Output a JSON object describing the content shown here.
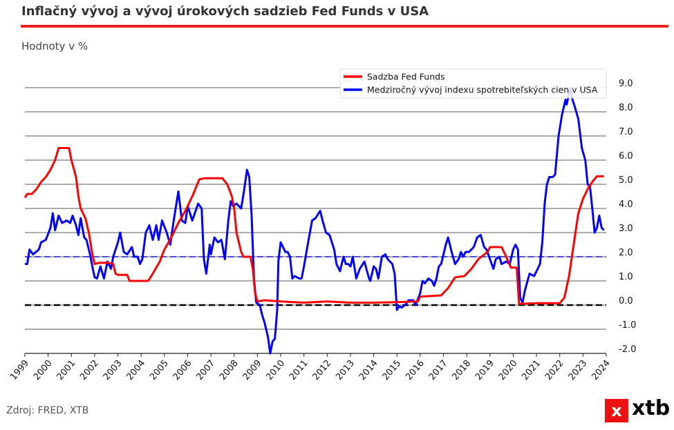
{
  "title": "Inflačný vývoj a vývoj úrokových sadzieb Fed Funds v USA",
  "subtitle": "Hodnoty v %",
  "source": "Zdroj: FRED, XTB",
  "logo": {
    "text": "xtb",
    "mark": "x",
    "color": "#ee1111"
  },
  "chart_data": {
    "type": "line",
    "title": "Inflačný vývoj a vývoj úrokových sadzieb Fed Funds v USA",
    "ylabel": "Hodnoty v %",
    "xlim": [
      1999,
      2024
    ],
    "ylim": [
      -2,
      9
    ],
    "grid": true,
    "legend_position": "top-right",
    "yaxis_side": "right",
    "x_ticks": [
      "1999",
      "2000",
      "2001",
      "2002",
      "2003",
      "2004",
      "2005",
      "2006",
      "2007",
      "2008",
      "2009",
      "2010",
      "2011",
      "2012",
      "2013",
      "2014",
      "2015",
      "2016",
      "2017",
      "2018",
      "2019",
      "2020",
      "2021",
      "2022",
      "2023",
      "2024"
    ],
    "y_ticks": [
      "9.0",
      "8.0",
      "7.0",
      "6.0",
      "5.0",
      "4.0",
      "3.0",
      "2.0",
      "1.0",
      "0.0",
      "-1.0",
      "-2.0"
    ],
    "reference_lines": [
      {
        "value": 2.0,
        "color": "#3333dd",
        "style": "dashed"
      },
      {
        "value": 0.0,
        "color": "#000000",
        "style": "dashed"
      }
    ],
    "series": [
      {
        "name": "Sadzba Fed Funds",
        "color": "#ff0000",
        "points": [
          [
            1999.0,
            4.45
          ],
          [
            1999.1,
            4.6
          ],
          [
            1999.3,
            4.6
          ],
          [
            1999.5,
            4.8
          ],
          [
            1999.7,
            5.1
          ],
          [
            1999.9,
            5.3
          ],
          [
            2000.1,
            5.6
          ],
          [
            2000.3,
            6.0
          ],
          [
            2000.45,
            6.5
          ],
          [
            2000.6,
            6.5
          ],
          [
            2000.9,
            6.5
          ],
          [
            2001.0,
            6.0
          ],
          [
            2001.2,
            5.3
          ],
          [
            2001.3,
            4.5
          ],
          [
            2001.4,
            4.0
          ],
          [
            2001.6,
            3.6
          ],
          [
            2001.75,
            3.0
          ],
          [
            2001.9,
            2.1
          ],
          [
            2002.0,
            1.7
          ],
          [
            2002.2,
            1.75
          ],
          [
            2002.6,
            1.75
          ],
          [
            2002.8,
            1.7
          ],
          [
            2002.9,
            1.3
          ],
          [
            2003.0,
            1.25
          ],
          [
            2003.4,
            1.25
          ],
          [
            2003.5,
            1.0
          ],
          [
            2003.9,
            1.0
          ],
          [
            2004.3,
            1.0
          ],
          [
            2004.5,
            1.3
          ],
          [
            2004.8,
            1.8
          ],
          [
            2005.0,
            2.3
          ],
          [
            2005.3,
            2.8
          ],
          [
            2005.6,
            3.4
          ],
          [
            2005.9,
            3.9
          ],
          [
            2006.2,
            4.5
          ],
          [
            2006.5,
            5.2
          ],
          [
            2006.7,
            5.25
          ],
          [
            2007.5,
            5.25
          ],
          [
            2007.7,
            5.0
          ],
          [
            2007.9,
            4.5
          ],
          [
            2008.0,
            4.0
          ],
          [
            2008.1,
            3.0
          ],
          [
            2008.3,
            2.2
          ],
          [
            2008.4,
            2.0
          ],
          [
            2008.7,
            2.0
          ],
          [
            2008.8,
            1.5
          ],
          [
            2008.9,
            0.5
          ],
          [
            2009.0,
            0.15
          ],
          [
            2009.3,
            0.2
          ],
          [
            2010.0,
            0.15
          ],
          [
            2011.0,
            0.1
          ],
          [
            2012.0,
            0.15
          ],
          [
            2013.0,
            0.1
          ],
          [
            2014.0,
            0.1
          ],
          [
            2015.0,
            0.12
          ],
          [
            2015.9,
            0.15
          ],
          [
            2016.0,
            0.35
          ],
          [
            2016.9,
            0.4
          ],
          [
            2017.2,
            0.7
          ],
          [
            2017.5,
            1.15
          ],
          [
            2017.9,
            1.2
          ],
          [
            2018.2,
            1.5
          ],
          [
            2018.5,
            1.9
          ],
          [
            2018.9,
            2.2
          ],
          [
            2019.0,
            2.4
          ],
          [
            2019.5,
            2.4
          ],
          [
            2019.7,
            2.0
          ],
          [
            2019.9,
            1.55
          ],
          [
            2020.15,
            1.55
          ],
          [
            2020.25,
            0.05
          ],
          [
            2021.0,
            0.08
          ],
          [
            2022.0,
            0.08
          ],
          [
            2022.2,
            0.3
          ],
          [
            2022.4,
            1.2
          ],
          [
            2022.6,
            2.5
          ],
          [
            2022.8,
            3.8
          ],
          [
            2023.0,
            4.4
          ],
          [
            2023.2,
            4.8
          ],
          [
            2023.4,
            5.1
          ],
          [
            2023.6,
            5.33
          ],
          [
            2023.9,
            5.33
          ]
        ]
      },
      {
        "name": "Medziročný vývoj indexu spotrebiteľských cien v USA",
        "color": "#0000ff",
        "points": [
          [
            1999.0,
            1.7
          ],
          [
            1999.1,
            1.7
          ],
          [
            1999.2,
            2.3
          ],
          [
            1999.35,
            2.1
          ],
          [
            1999.6,
            2.3
          ],
          [
            1999.7,
            2.6
          ],
          [
            1999.9,
            2.7
          ],
          [
            2000.1,
            3.2
          ],
          [
            2000.2,
            3.8
          ],
          [
            2000.3,
            3.1
          ],
          [
            2000.45,
            3.7
          ],
          [
            2000.6,
            3.4
          ],
          [
            2000.8,
            3.5
          ],
          [
            2000.95,
            3.4
          ],
          [
            2001.05,
            3.7
          ],
          [
            2001.2,
            3.3
          ],
          [
            2001.3,
            2.9
          ],
          [
            2001.4,
            3.6
          ],
          [
            2001.55,
            2.8
          ],
          [
            2001.65,
            2.7
          ],
          [
            2001.8,
            2.1
          ],
          [
            2001.9,
            1.6
          ],
          [
            2002.0,
            1.15
          ],
          [
            2002.1,
            1.1
          ],
          [
            2002.25,
            1.6
          ],
          [
            2002.4,
            1.1
          ],
          [
            2002.55,
            1.8
          ],
          [
            2002.7,
            1.5
          ],
          [
            2002.8,
            2.0
          ],
          [
            2003.0,
            2.6
          ],
          [
            2003.1,
            3.0
          ],
          [
            2003.25,
            2.2
          ],
          [
            2003.4,
            2.1
          ],
          [
            2003.6,
            2.4
          ],
          [
            2003.7,
            2.0
          ],
          [
            2003.85,
            2.0
          ],
          [
            2003.95,
            1.7
          ],
          [
            2004.05,
            1.9
          ],
          [
            2004.2,
            3.0
          ],
          [
            2004.35,
            3.3
          ],
          [
            2004.5,
            2.7
          ],
          [
            2004.65,
            3.3
          ],
          [
            2004.75,
            2.7
          ],
          [
            2004.9,
            3.5
          ],
          [
            2005.1,
            3.0
          ],
          [
            2005.25,
            2.5
          ],
          [
            2005.4,
            3.5
          ],
          [
            2005.6,
            4.7
          ],
          [
            2005.75,
            3.5
          ],
          [
            2005.9,
            3.4
          ],
          [
            2006.0,
            4.1
          ],
          [
            2006.2,
            3.5
          ],
          [
            2006.45,
            4.2
          ],
          [
            2006.6,
            4.0
          ],
          [
            2006.7,
            1.9
          ],
          [
            2006.8,
            1.3
          ],
          [
            2006.95,
            2.5
          ],
          [
            2007.0,
            2.1
          ],
          [
            2007.15,
            2.8
          ],
          [
            2007.3,
            2.6
          ],
          [
            2007.45,
            2.7
          ],
          [
            2007.6,
            1.9
          ],
          [
            2007.75,
            3.5
          ],
          [
            2007.85,
            4.3
          ],
          [
            2007.95,
            4.1
          ],
          [
            2008.1,
            4.2
          ],
          [
            2008.3,
            4.0
          ],
          [
            2008.45,
            4.9
          ],
          [
            2008.55,
            5.6
          ],
          [
            2008.65,
            5.3
          ],
          [
            2008.75,
            3.7
          ],
          [
            2008.85,
            1.1
          ],
          [
            2008.95,
            0.1
          ],
          [
            2009.1,
            0.0
          ],
          [
            2009.2,
            -0.4
          ],
          [
            2009.3,
            -0.7
          ],
          [
            2009.45,
            -1.3
          ],
          [
            2009.55,
            -2.0
          ],
          [
            2009.65,
            -1.5
          ],
          [
            2009.75,
            -1.4
          ],
          [
            2009.85,
            -0.2
          ],
          [
            2009.9,
            1.8
          ],
          [
            2010.0,
            2.6
          ],
          [
            2010.1,
            2.4
          ],
          [
            2010.2,
            2.2
          ],
          [
            2010.3,
            2.2
          ],
          [
            2010.4,
            2.0
          ],
          [
            2010.5,
            1.1
          ],
          [
            2010.6,
            1.2
          ],
          [
            2010.7,
            1.15
          ],
          [
            2010.8,
            1.1
          ],
          [
            2010.9,
            1.1
          ],
          [
            2011.0,
            1.6
          ],
          [
            2011.2,
            2.7
          ],
          [
            2011.35,
            3.5
          ],
          [
            2011.5,
            3.6
          ],
          [
            2011.7,
            3.9
          ],
          [
            2011.8,
            3.5
          ],
          [
            2011.95,
            3.0
          ],
          [
            2012.1,
            2.9
          ],
          [
            2012.3,
            2.3
          ],
          [
            2012.4,
            1.7
          ],
          [
            2012.55,
            1.4
          ],
          [
            2012.7,
            2.0
          ],
          [
            2012.8,
            1.7
          ],
          [
            2012.9,
            1.7
          ],
          [
            2013.0,
            1.6
          ],
          [
            2013.1,
            2.0
          ],
          [
            2013.25,
            1.1
          ],
          [
            2013.4,
            1.5
          ],
          [
            2013.6,
            1.8
          ],
          [
            2013.8,
            1.1
          ],
          [
            2013.85,
            1.0
          ],
          [
            2014.0,
            1.6
          ],
          [
            2014.1,
            1.5
          ],
          [
            2014.2,
            1.1
          ],
          [
            2014.35,
            2.0
          ],
          [
            2014.5,
            2.1
          ],
          [
            2014.6,
            1.9
          ],
          [
            2014.8,
            1.7
          ],
          [
            2014.9,
            1.3
          ],
          [
            2015.0,
            -0.2
          ],
          [
            2015.1,
            -0.05
          ],
          [
            2015.2,
            -0.1
          ],
          [
            2015.35,
            0.0
          ],
          [
            2015.5,
            0.2
          ],
          [
            2015.7,
            0.2
          ],
          [
            2015.8,
            0.0
          ],
          [
            2016.0,
            0.5
          ],
          [
            2016.1,
            1.0
          ],
          [
            2016.2,
            0.9
          ],
          [
            2016.35,
            1.1
          ],
          [
            2016.5,
            1.0
          ],
          [
            2016.6,
            0.8
          ],
          [
            2016.7,
            1.1
          ],
          [
            2016.8,
            1.6
          ],
          [
            2016.9,
            1.7
          ],
          [
            2017.1,
            2.5
          ],
          [
            2017.2,
            2.8
          ],
          [
            2017.35,
            2.2
          ],
          [
            2017.5,
            1.7
          ],
          [
            2017.65,
            1.9
          ],
          [
            2017.75,
            2.2
          ],
          [
            2017.85,
            2.0
          ],
          [
            2017.95,
            2.2
          ],
          [
            2018.1,
            2.2
          ],
          [
            2018.3,
            2.4
          ],
          [
            2018.45,
            2.8
          ],
          [
            2018.6,
            2.9
          ],
          [
            2018.75,
            2.4
          ],
          [
            2018.85,
            2.3
          ],
          [
            2019.0,
            1.9
          ],
          [
            2019.15,
            1.5
          ],
          [
            2019.25,
            1.9
          ],
          [
            2019.4,
            2.0
          ],
          [
            2019.5,
            1.7
          ],
          [
            2019.7,
            1.8
          ],
          [
            2019.85,
            1.7
          ],
          [
            2020.0,
            2.3
          ],
          [
            2020.1,
            2.5
          ],
          [
            2020.2,
            2.3
          ],
          [
            2020.3,
            0.3
          ],
          [
            2020.4,
            0.1
          ],
          [
            2020.5,
            0.6
          ],
          [
            2020.7,
            1.3
          ],
          [
            2020.9,
            1.2
          ],
          [
            2021.0,
            1.4
          ],
          [
            2021.15,
            1.7
          ],
          [
            2021.25,
            2.6
          ],
          [
            2021.35,
            4.2
          ],
          [
            2021.45,
            5.0
          ],
          [
            2021.55,
            5.3
          ],
          [
            2021.7,
            5.3
          ],
          [
            2021.8,
            5.4
          ],
          [
            2021.95,
            7.0
          ],
          [
            2022.1,
            7.9
          ],
          [
            2022.25,
            8.5
          ],
          [
            2022.3,
            8.3
          ],
          [
            2022.45,
            9.0
          ],
          [
            2022.55,
            8.5
          ],
          [
            2022.65,
            8.2
          ],
          [
            2022.8,
            7.7
          ],
          [
            2022.95,
            6.5
          ],
          [
            2023.1,
            6.0
          ],
          [
            2023.2,
            5.0
          ],
          [
            2023.3,
            4.9
          ],
          [
            2023.4,
            4.0
          ],
          [
            2023.5,
            3.0
          ],
          [
            2023.6,
            3.2
          ],
          [
            2023.7,
            3.7
          ],
          [
            2023.8,
            3.2
          ],
          [
            2023.9,
            3.1
          ]
        ]
      }
    ]
  }
}
